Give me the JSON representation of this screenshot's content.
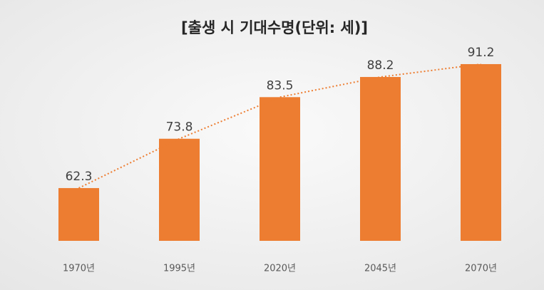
{
  "chart_data": {
    "type": "bar",
    "title": "[출생 시 기대수명(단위: 세)]",
    "categories": [
      "1970년",
      "1995년",
      "2020년",
      "2045년",
      "2070년"
    ],
    "values": [
      62.3,
      73.8,
      83.5,
      88.2,
      91.2
    ],
    "color": "#ed7d31",
    "ylim": [
      50,
      100
    ],
    "trendline": true
  }
}
